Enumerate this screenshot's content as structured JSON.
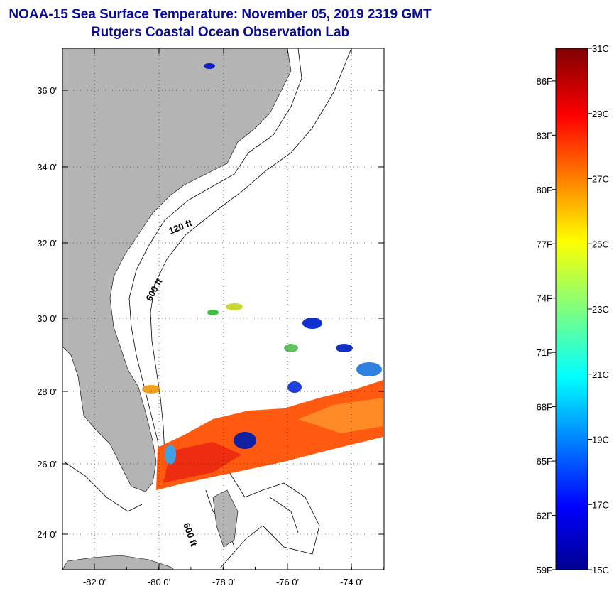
{
  "header": {
    "title": "NOAA-15 Sea Surface Temperature:  November 05, 2019 2319 GMT",
    "subtitle": "Rutgers Coastal Ocean Observation Lab"
  },
  "map": {
    "lat_ticks": [
      "36 0'",
      "34 0'",
      "32 0'",
      "30 0'",
      "28 0'",
      "26 0'",
      "24 0'"
    ],
    "lon_ticks": [
      "-82 0'",
      "-80 0'",
      "-78 0'",
      "-76 0'",
      "-74 0'"
    ],
    "contour_labels": [
      "120 ft",
      "600 ft",
      "600 ft"
    ],
    "colors": {
      "land": "#b4b4b4",
      "ocean": "#ffffff",
      "title": "#0a0a9a"
    }
  },
  "colorbar": {
    "celsius_labels": [
      "31C",
      "29C",
      "27C",
      "25C",
      "23C",
      "21C",
      "19C",
      "17C",
      "15C"
    ],
    "fahrenheit_labels": [
      "86F",
      "83F",
      "80F",
      "77F",
      "74F",
      "71F",
      "68F",
      "65F",
      "62F",
      "59F"
    ],
    "range_c": [
      15,
      31
    ]
  }
}
